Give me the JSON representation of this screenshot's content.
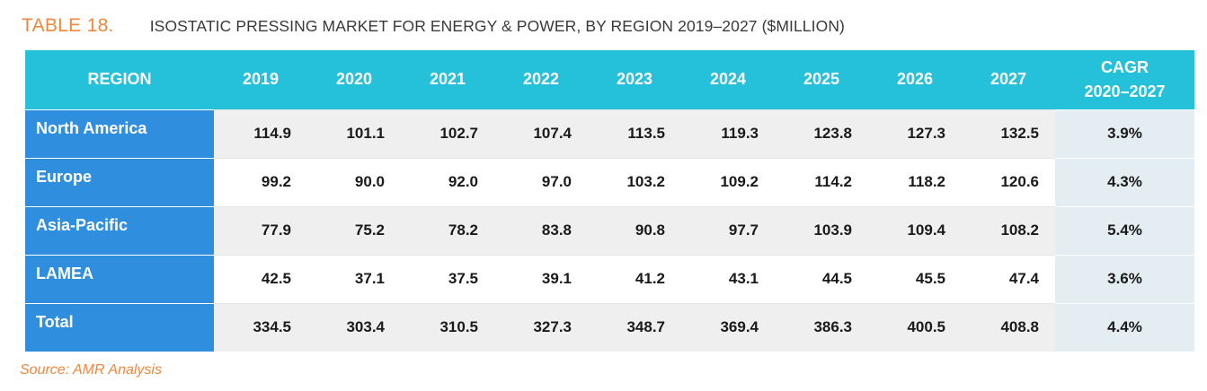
{
  "caption": {
    "table_number": "TABLE 18.",
    "title": "ISOSTATIC PRESSING MARKET FOR ENERGY & POWER, BY REGION 2019–2027 ($MILLION)"
  },
  "table": {
    "headers": {
      "region": "REGION",
      "years": [
        "2019",
        "2020",
        "2021",
        "2022",
        "2023",
        "2024",
        "2025",
        "2026",
        "2027"
      ],
      "cagr_line1": "CAGR",
      "cagr_line2": "2020–2027"
    },
    "rows": [
      {
        "region": "North America",
        "values": [
          "114.9",
          "101.1",
          "102.7",
          "107.4",
          "113.5",
          "119.3",
          "123.8",
          "127.3",
          "132.5"
        ],
        "cagr": "3.9%"
      },
      {
        "region": "Europe",
        "values": [
          "99.2",
          "90.0",
          "92.0",
          "97.0",
          "103.2",
          "109.2",
          "114.2",
          "118.2",
          "120.6"
        ],
        "cagr": "4.3%"
      },
      {
        "region": "Asia-Pacific",
        "values": [
          "77.9",
          "75.2",
          "78.2",
          "83.8",
          "90.8",
          "97.7",
          "103.9",
          "109.4",
          "108.2"
        ],
        "cagr": "5.4%"
      },
      {
        "region": "LAMEA",
        "values": [
          "42.5",
          "37.1",
          "37.5",
          "39.1",
          "41.2",
          "43.1",
          "44.5",
          "45.5",
          "47.4"
        ],
        "cagr": "3.6%"
      },
      {
        "region": "Total",
        "values": [
          "334.5",
          "303.4",
          "310.5",
          "327.3",
          "348.7",
          "369.4",
          "386.3",
          "400.5",
          "408.8"
        ],
        "cagr": "4.4%"
      }
    ]
  },
  "source": "Source: AMR Analysis",
  "colors": {
    "accent_orange": "#f0873a",
    "header_cyan": "#25c0d9",
    "region_blue": "#2f8fde",
    "cagr_bg": "#e3edf2"
  }
}
